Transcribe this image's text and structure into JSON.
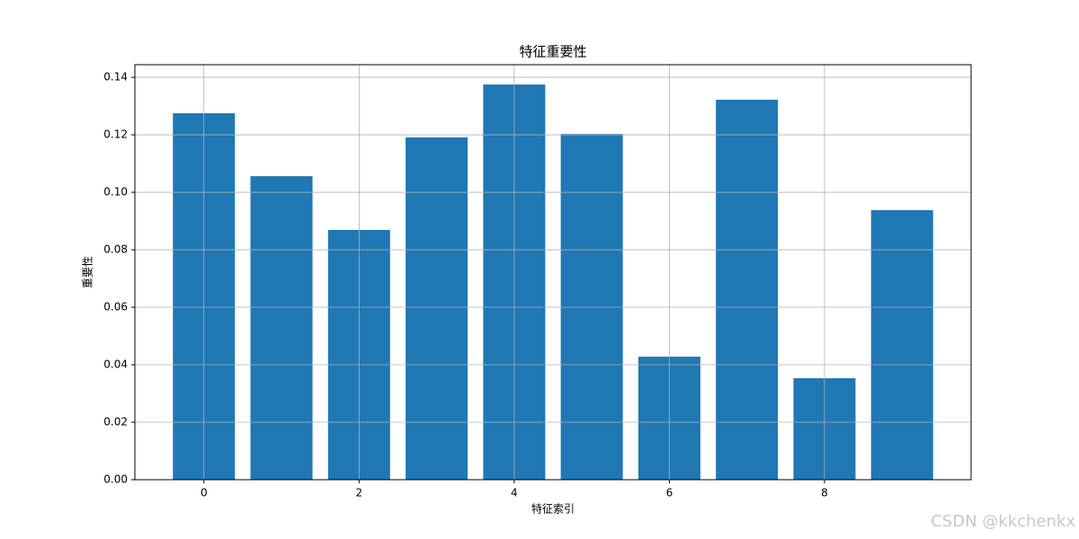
{
  "chart_data": {
    "type": "bar",
    "title": "特征重要性",
    "x_label": "特征索引",
    "y_label": "重要性",
    "x": [
      0,
      1,
      2,
      3,
      4,
      5,
      6,
      7,
      8,
      9
    ],
    "values": [
      0.1275,
      0.1056,
      0.0869,
      0.1191,
      0.1375,
      0.1203,
      0.0428,
      0.1322,
      0.0353,
      0.0938
    ],
    "color": "#1f77b4",
    "xlim": [
      -0.89,
      9.89
    ],
    "xticks": [
      0,
      2,
      4,
      6,
      8
    ],
    "ylim": [
      0,
      0.1444
    ],
    "yticks": [
      {
        "value": 0,
        "label": "0.00"
      },
      {
        "value": 0.02,
        "label": "0.02"
      },
      {
        "value": 0.04,
        "label": "0.04"
      },
      {
        "value": 0.06,
        "label": "0.06"
      },
      {
        "value": 0.08,
        "label": "0.08"
      },
      {
        "value": 0.1,
        "label": "0.10"
      },
      {
        "value": 0.12,
        "label": "0.12"
      },
      {
        "value": 0.14,
        "label": "0.14"
      }
    ],
    "grid": true,
    "watermark": "CSDN @kkchenkx"
  }
}
